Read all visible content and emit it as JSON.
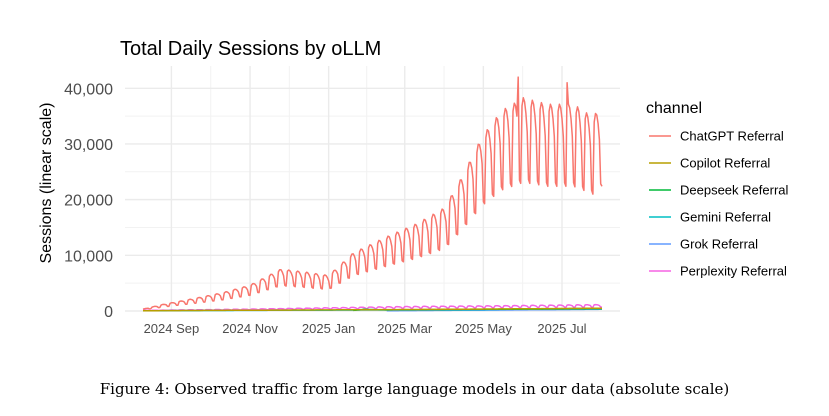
{
  "chart_data": {
    "type": "line",
    "title": "Total Daily Sessions by oLLM",
    "xlabel": "",
    "ylabel": "Sessions (linear scale)",
    "x_ticks": [
      {
        "date": "2024-09-01",
        "label": "2024 Sep"
      },
      {
        "date": "2024-11-01",
        "label": "2024 Nov"
      },
      {
        "date": "2025-01-01",
        "label": "2025 Jan"
      },
      {
        "date": "2025-03-01",
        "label": "2025 Mar"
      },
      {
        "date": "2025-05-01",
        "label": "2025 May"
      },
      {
        "date": "2025-07-01",
        "label": "2025 Jul"
      }
    ],
    "x_range": [
      "2024-07-27",
      "2025-08-15"
    ],
    "x_data_range": [
      "2024-08-10",
      "2025-08-01"
    ],
    "y_ticks": [
      {
        "value": 0,
        "label": "0"
      },
      {
        "value": 10000,
        "label": "10,000"
      },
      {
        "value": 20000,
        "label": "20,000"
      },
      {
        "value": 30000,
        "label": "30,000"
      },
      {
        "value": 40000,
        "label": "40,000"
      }
    ],
    "ylim": [
      0,
      44000
    ],
    "grid": true,
    "legend_title": "channel",
    "legend_position": "right",
    "series": [
      {
        "name": "ChatGPT Referral",
        "color": "#F8766D",
        "weekly_seasonality": true,
        "anchor_points": [
          [
            "2024-08-10",
            300
          ],
          [
            "2024-08-25",
            1000
          ],
          [
            "2024-09-15",
            1800
          ],
          [
            "2024-10-10",
            2800
          ],
          [
            "2024-11-01",
            4000
          ],
          [
            "2024-11-25",
            6500
          ],
          [
            "2024-12-15",
            6000
          ],
          [
            "2025-01-01",
            5500
          ],
          [
            "2025-01-20",
            9000
          ],
          [
            "2025-02-15",
            11500
          ],
          [
            "2025-03-10",
            13500
          ],
          [
            "2025-04-01",
            16000
          ],
          [
            "2025-04-15",
            21000
          ],
          [
            "2025-04-30",
            27000
          ],
          [
            "2025-05-15",
            31000
          ],
          [
            "2025-06-01",
            33000
          ],
          [
            "2025-06-20",
            32000
          ],
          [
            "2025-07-10",
            32000
          ],
          [
            "2025-07-25",
            30000
          ],
          [
            "2025-08-01",
            32000
          ]
        ],
        "peaks": [
          [
            "2025-05-28",
            42000
          ],
          [
            "2025-07-05",
            41000
          ]
        ]
      },
      {
        "name": "Copilot Referral",
        "color": "#B79F00",
        "weekly_seasonality": false,
        "anchor_points": [
          [
            "2024-08-10",
            50
          ],
          [
            "2025-01-01",
            200
          ],
          [
            "2025-04-01",
            300
          ],
          [
            "2025-08-01",
            500
          ]
        ]
      },
      {
        "name": "Deepseek Referral",
        "color": "#00BA38",
        "weekly_seasonality": false,
        "anchor_points": [
          [
            "2025-01-20",
            100
          ],
          [
            "2025-01-28",
            300
          ],
          [
            "2025-02-15",
            200
          ],
          [
            "2025-05-01",
            300
          ],
          [
            "2025-08-01",
            400
          ]
        ]
      },
      {
        "name": "Gemini Referral",
        "color": "#00BFC4",
        "weekly_seasonality": false,
        "anchor_points": [
          [
            "2024-08-10",
            50
          ],
          [
            "2025-01-01",
            150
          ],
          [
            "2025-05-01",
            250
          ],
          [
            "2025-08-01",
            500
          ]
        ]
      },
      {
        "name": "Grok Referral",
        "color": "#619CFF",
        "weekly_seasonality": false,
        "anchor_points": [
          [
            "2025-02-15",
            50
          ],
          [
            "2025-05-01",
            150
          ],
          [
            "2025-08-01",
            300
          ]
        ]
      },
      {
        "name": "Perplexity Referral",
        "color": "#F564E3",
        "weekly_seasonality": true,
        "anchor_points": [
          [
            "2024-08-10",
            100
          ],
          [
            "2024-11-01",
            300
          ],
          [
            "2025-01-01",
            500
          ],
          [
            "2025-03-01",
            700
          ],
          [
            "2025-05-01",
            800
          ],
          [
            "2025-08-01",
            1000
          ]
        ]
      }
    ]
  },
  "caption": "Figure 4: Observed traffic from large language models in our data (absolute scale)"
}
